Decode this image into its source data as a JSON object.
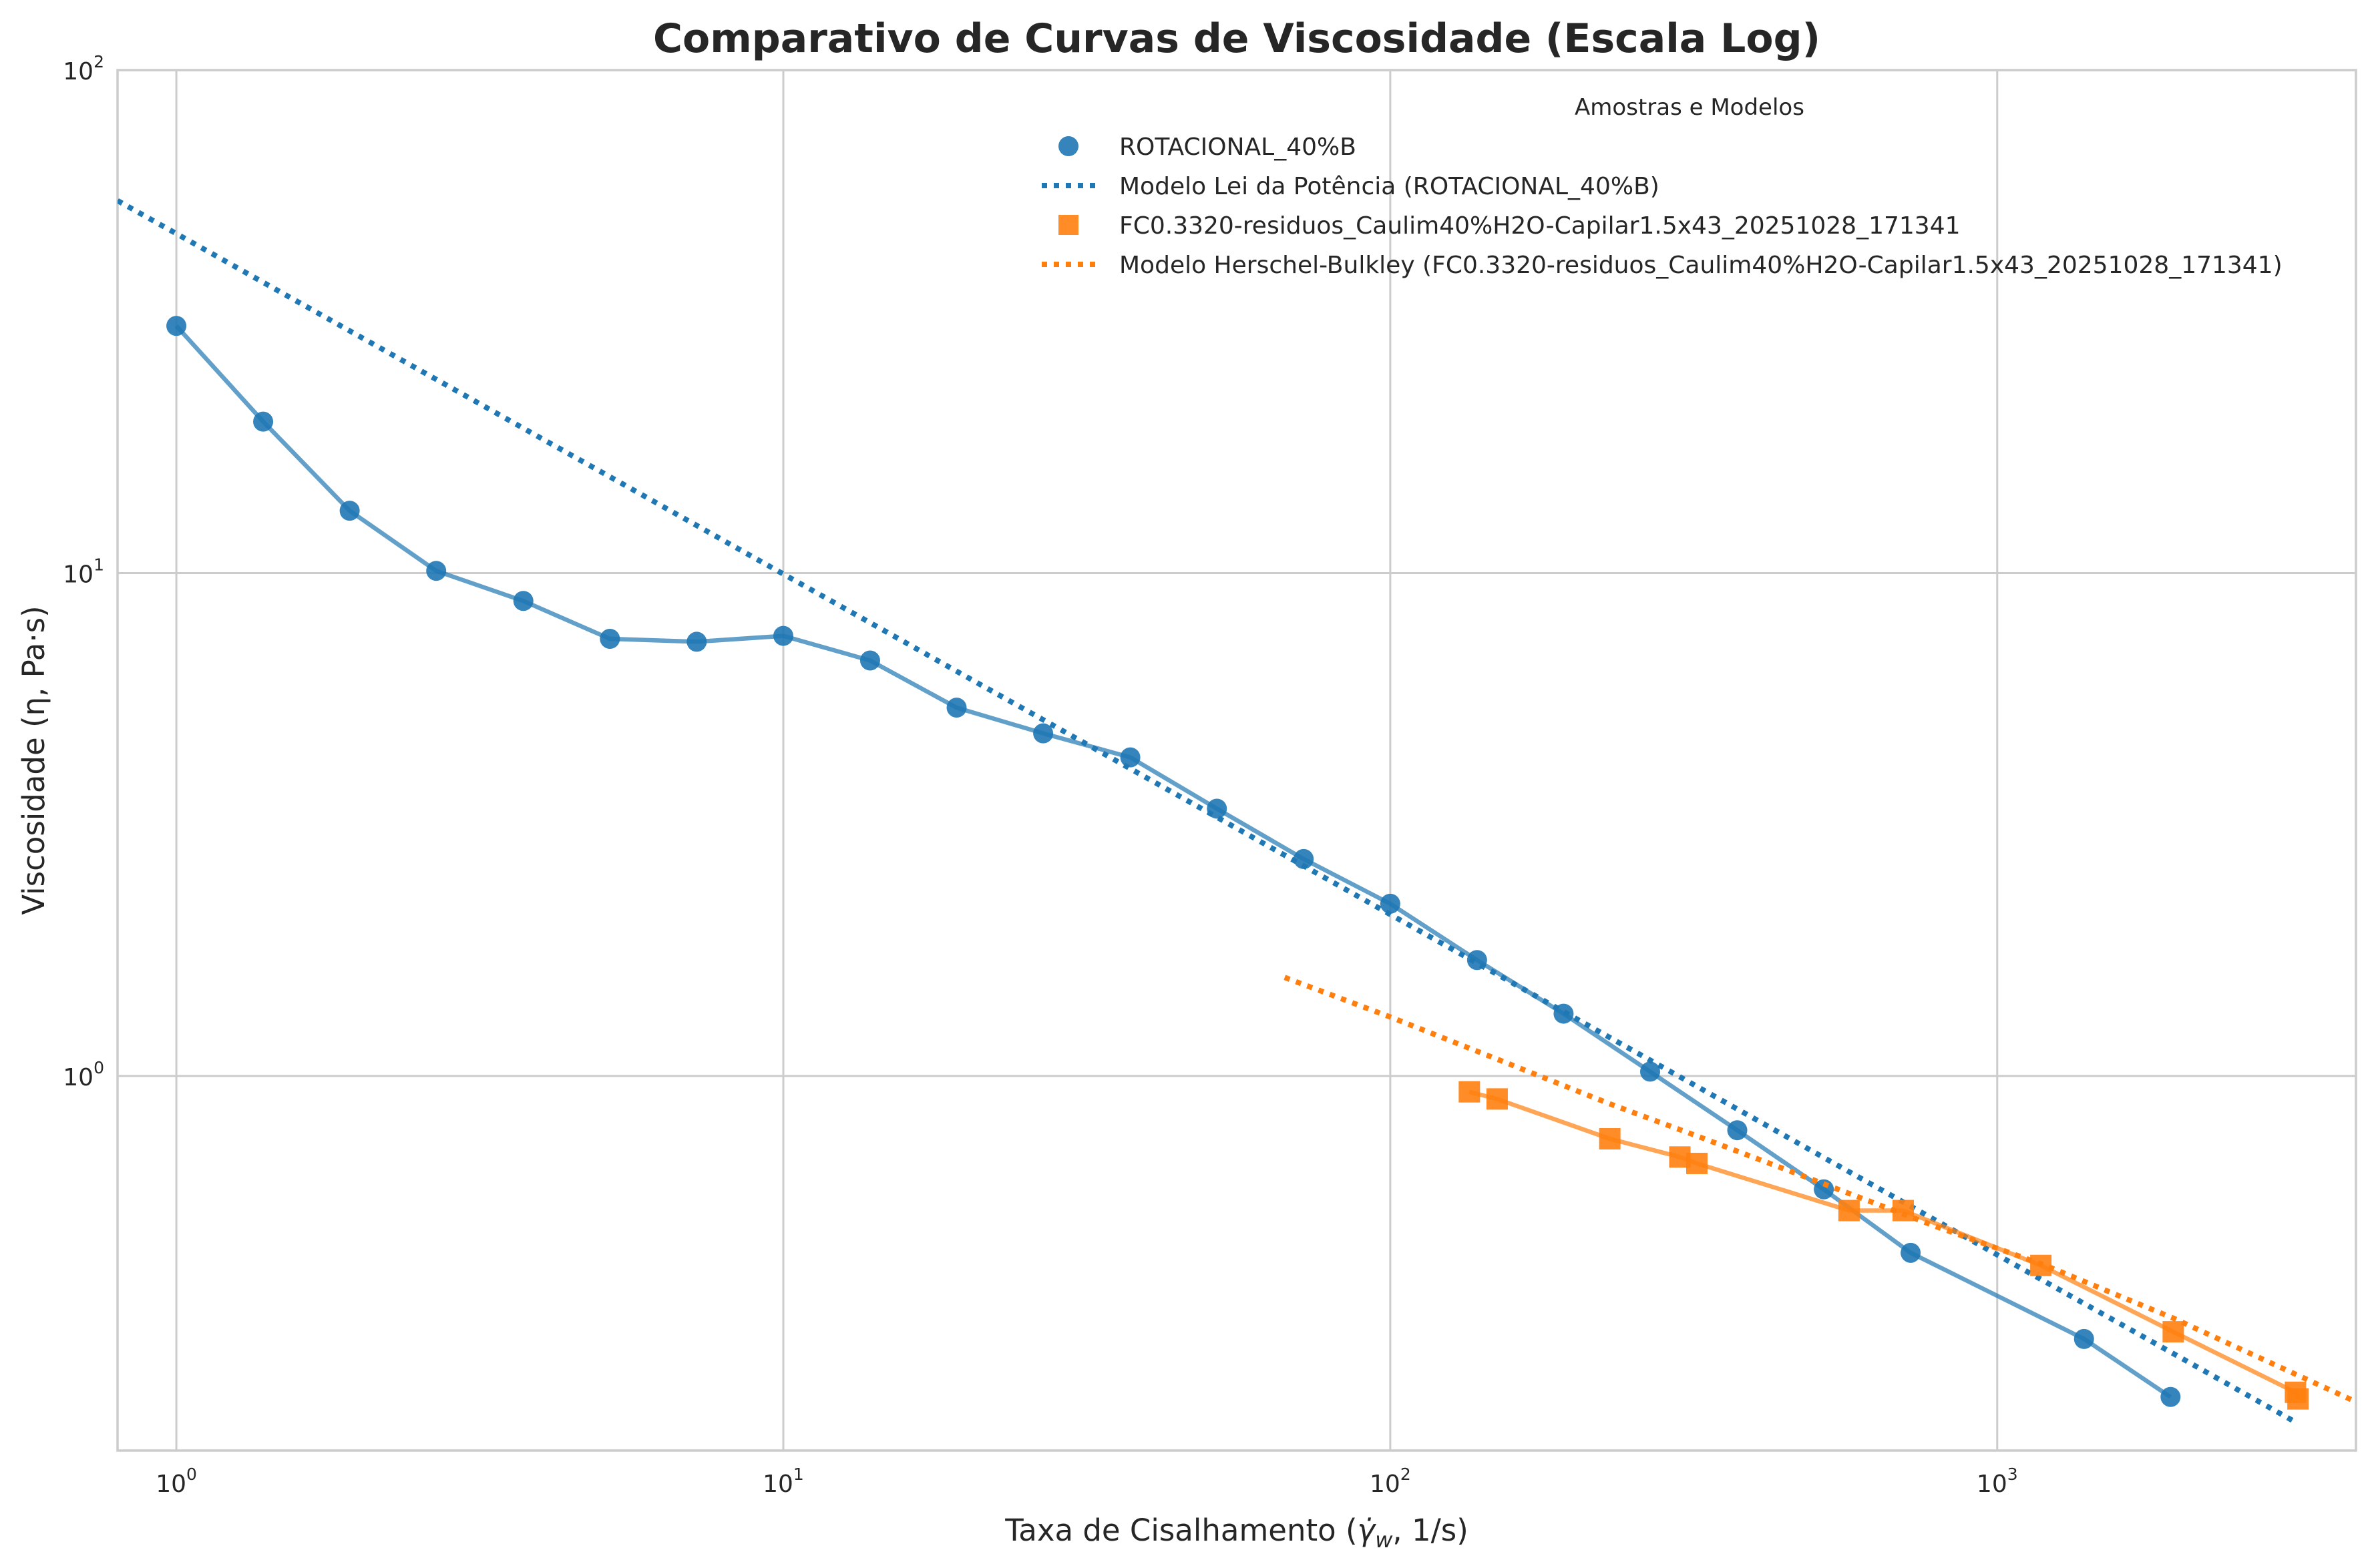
{
  "chart_data": {
    "type": "scatter",
    "title": "Comparativo de Curvas de Viscosidade (Escala Log)",
    "xlabel_main": "Taxa de Cisalhamento (",
    "xlabel_math": "γ̇",
    "xlabel_sub": "w",
    "xlabel_tail": ", 1/s)",
    "ylabel": "Viscosidade (η, Pa·s)",
    "xscale": "log",
    "yscale": "log",
    "xlim": [
      0.8,
      3900
    ],
    "ylim": [
      0.18,
      100
    ],
    "grid": true,
    "legend_title": "Amostras e Modelos",
    "legend_position": "top-right",
    "x_ticks": [
      {
        "value": 1,
        "base": "10",
        "exp": "0"
      },
      {
        "value": 10,
        "base": "10",
        "exp": "1"
      },
      {
        "value": 100,
        "base": "10",
        "exp": "2"
      },
      {
        "value": 1000,
        "base": "10",
        "exp": "3"
      }
    ],
    "y_ticks": [
      {
        "value": 1,
        "base": "10",
        "exp": "0"
      },
      {
        "value": 10,
        "base": "10",
        "exp": "1"
      },
      {
        "value": 100,
        "base": "10",
        "exp": "2"
      }
    ],
    "series": [
      {
        "name": "ROTACIONAL_40%B",
        "kind": "points",
        "marker": "circle",
        "color": "#1f77b4",
        "x": [
          1,
          1.39,
          1.93,
          2.68,
          3.73,
          5.18,
          7.2,
          10,
          13.9,
          19.3,
          26.8,
          37.3,
          51.8,
          72,
          100,
          139,
          193,
          268,
          373,
          518,
          720,
          1390,
          1930
        ],
        "y": [
          31,
          20,
          13.3,
          10.1,
          8.8,
          7.4,
          7.3,
          7.5,
          6.7,
          5.4,
          4.8,
          4.3,
          3.4,
          2.7,
          2.2,
          1.7,
          1.33,
          1.02,
          0.78,
          0.595,
          0.445,
          0.3,
          0.23
        ]
      },
      {
        "name": "Modelo Lei da Potência (ROTACIONAL_40%B)",
        "kind": "fit",
        "color": "#1f77b4",
        "x": [
          0.8,
          3100
        ],
        "y": [
          55,
          0.205
        ]
      },
      {
        "name": "FC0.3320-residuos_Caulim40%H2O-Capilar1.5x43_20251028_171341",
        "kind": "points",
        "marker": "square",
        "color": "#ff7f0e",
        "x": [
          135,
          150,
          230,
          300,
          320,
          570,
          700,
          1180,
          1950,
          3100,
          3130
        ],
        "y": [
          0.93,
          0.9,
          0.75,
          0.69,
          0.67,
          0.54,
          0.54,
          0.42,
          0.31,
          0.235,
          0.228
        ]
      },
      {
        "name": "Modelo Herschel-Bulkley (FC0.3320-residuos_Caulim40%H2O-Capilar1.5x43_20251028_171341)",
        "kind": "fit",
        "color": "#ff7f0e",
        "x": [
          67,
          100,
          150,
          230,
          320,
          500,
          800,
          1200,
          1950,
          3000,
          3900
        ],
        "y": [
          1.57,
          1.31,
          1.08,
          0.88,
          0.76,
          0.62,
          0.5,
          0.42,
          0.33,
          0.26,
          0.225
        ]
      }
    ]
  }
}
